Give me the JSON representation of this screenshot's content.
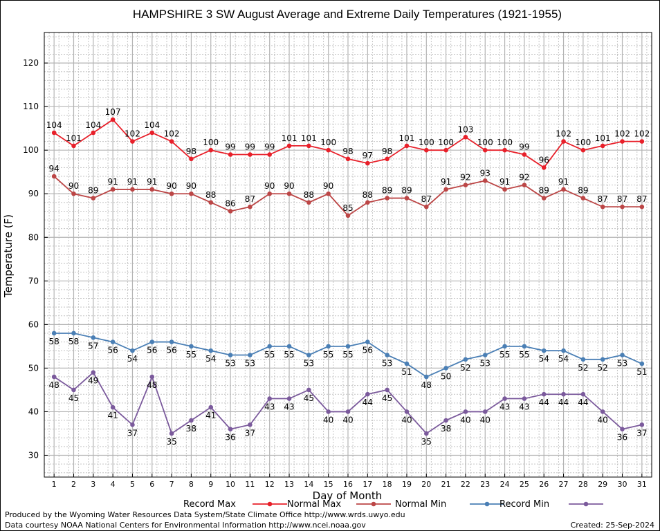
{
  "chart_data": {
    "type": "line",
    "title": "HAMPSHIRE 3 SW August Average and Extreme Daily Temperatures (1921-1955)",
    "xlabel": "Day of Month",
    "ylabel": "Temperature (F)",
    "x": [
      1,
      2,
      3,
      4,
      5,
      6,
      7,
      8,
      9,
      10,
      11,
      12,
      13,
      14,
      15,
      16,
      17,
      18,
      19,
      20,
      21,
      22,
      23,
      24,
      25,
      26,
      27,
      28,
      29,
      30,
      31
    ],
    "ylim": [
      25,
      127
    ],
    "yticks": [
      30,
      40,
      50,
      60,
      70,
      80,
      90,
      100,
      110,
      120
    ],
    "grid": true,
    "legend_position": "bottom",
    "series": [
      {
        "name": "Record Max",
        "color": "#e8202a",
        "values": [
          104,
          101,
          104,
          107,
          102,
          104,
          102,
          98,
          100,
          99,
          99,
          99,
          101,
          101,
          100,
          98,
          97,
          98,
          101,
          100,
          100,
          103,
          100,
          100,
          99,
          96,
          102,
          100,
          101,
          102,
          102
        ]
      },
      {
        "name": "Normal Max",
        "color": "#bc4646",
        "values": [
          94,
          90,
          89,
          91,
          91,
          91,
          90,
          90,
          88,
          86,
          87,
          90,
          90,
          88,
          90,
          85,
          88,
          89,
          89,
          87,
          91,
          92,
          93,
          91,
          92,
          89,
          91,
          89,
          87,
          87,
          87
        ]
      },
      {
        "name": "Normal Min",
        "color": "#4a7fb5",
        "values": [
          58,
          58,
          57,
          56,
          54,
          56,
          56,
          55,
          54,
          53,
          53,
          55,
          55,
          53,
          55,
          55,
          56,
          53,
          51,
          48,
          50,
          52,
          53,
          55,
          55,
          54,
          54,
          52,
          52,
          53,
          51
        ]
      },
      {
        "name": "Record Min",
        "color": "#7b5a9c",
        "values": [
          48,
          45,
          49,
          41,
          37,
          48,
          35,
          38,
          41,
          36,
          37,
          43,
          43,
          45,
          40,
          40,
          44,
          45,
          40,
          35,
          38,
          40,
          40,
          43,
          43,
          44,
          44,
          44,
          40,
          36,
          37
        ]
      }
    ]
  },
  "footer": {
    "credit": "Produced by the Wyoming Water Resources Data System/State Climate Office http://www.wrds.uwyo.edu",
    "source": "Data courtesy NOAA National Centers for Environmental Information http://www.ncei.noaa.gov",
    "created": "Created:  25-Sep-2024"
  }
}
